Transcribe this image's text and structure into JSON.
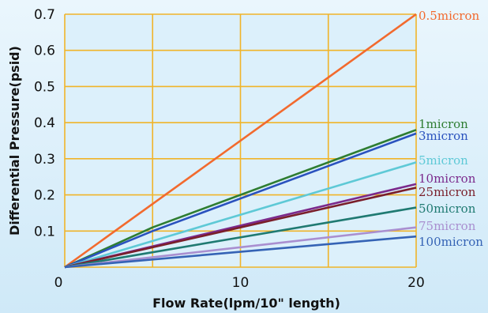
{
  "chart_data": {
    "type": "line",
    "title": "",
    "xlabel": "Flow Rate(lpm/10\" length)",
    "ylabel": "Differential Pressure(psid)",
    "xlim": [
      0,
      20
    ],
    "ylim": [
      0,
      0.7
    ],
    "x_ticks": [
      0,
      10,
      20
    ],
    "x_tick_labels": [
      "0",
      "10",
      "20"
    ],
    "y_ticks": [
      0.1,
      0.2,
      0.3,
      0.4,
      0.5,
      0.6,
      0.7
    ],
    "y_tick_labels": [
      "0.1",
      "0.2",
      "0.3",
      "0.4",
      "0.5",
      "0.6",
      "0.7"
    ],
    "grid": true,
    "grid_color": "#f0b429",
    "plot_background": "#dcf0fb",
    "series": [
      {
        "name": "0.5micron",
        "color": "#f26a2e",
        "x": [
          0,
          20
        ],
        "y": [
          0,
          0.7
        ]
      },
      {
        "name": "1micron",
        "color": "#2e7d32",
        "x": [
          0,
          5,
          20
        ],
        "y": [
          0,
          0.11,
          0.38
        ]
      },
      {
        "name": "3micron",
        "color": "#2a52be",
        "x": [
          0,
          5,
          20
        ],
        "y": [
          0,
          0.1,
          0.37
        ]
      },
      {
        "name": "5micron",
        "color": "#5ec9d6",
        "x": [
          0,
          20
        ],
        "y": [
          0,
          0.29
        ]
      },
      {
        "name": "10micron",
        "color": "#7b2a8c",
        "x": [
          0,
          20
        ],
        "y": [
          0,
          0.23
        ]
      },
      {
        "name": "25micron",
        "color": "#7a1f2b",
        "x": [
          0,
          20
        ],
        "y": [
          0,
          0.22
        ]
      },
      {
        "name": "50micron",
        "color": "#1f7a72",
        "x": [
          0,
          20
        ],
        "y": [
          0,
          0.165
        ]
      },
      {
        "name": "75micron",
        "color": "#a98fd0",
        "x": [
          0,
          20
        ],
        "y": [
          0,
          0.11
        ]
      },
      {
        "name": "100micron",
        "color": "#3563b5",
        "x": [
          0,
          20
        ],
        "y": [
          0,
          0.085
        ]
      }
    ]
  }
}
